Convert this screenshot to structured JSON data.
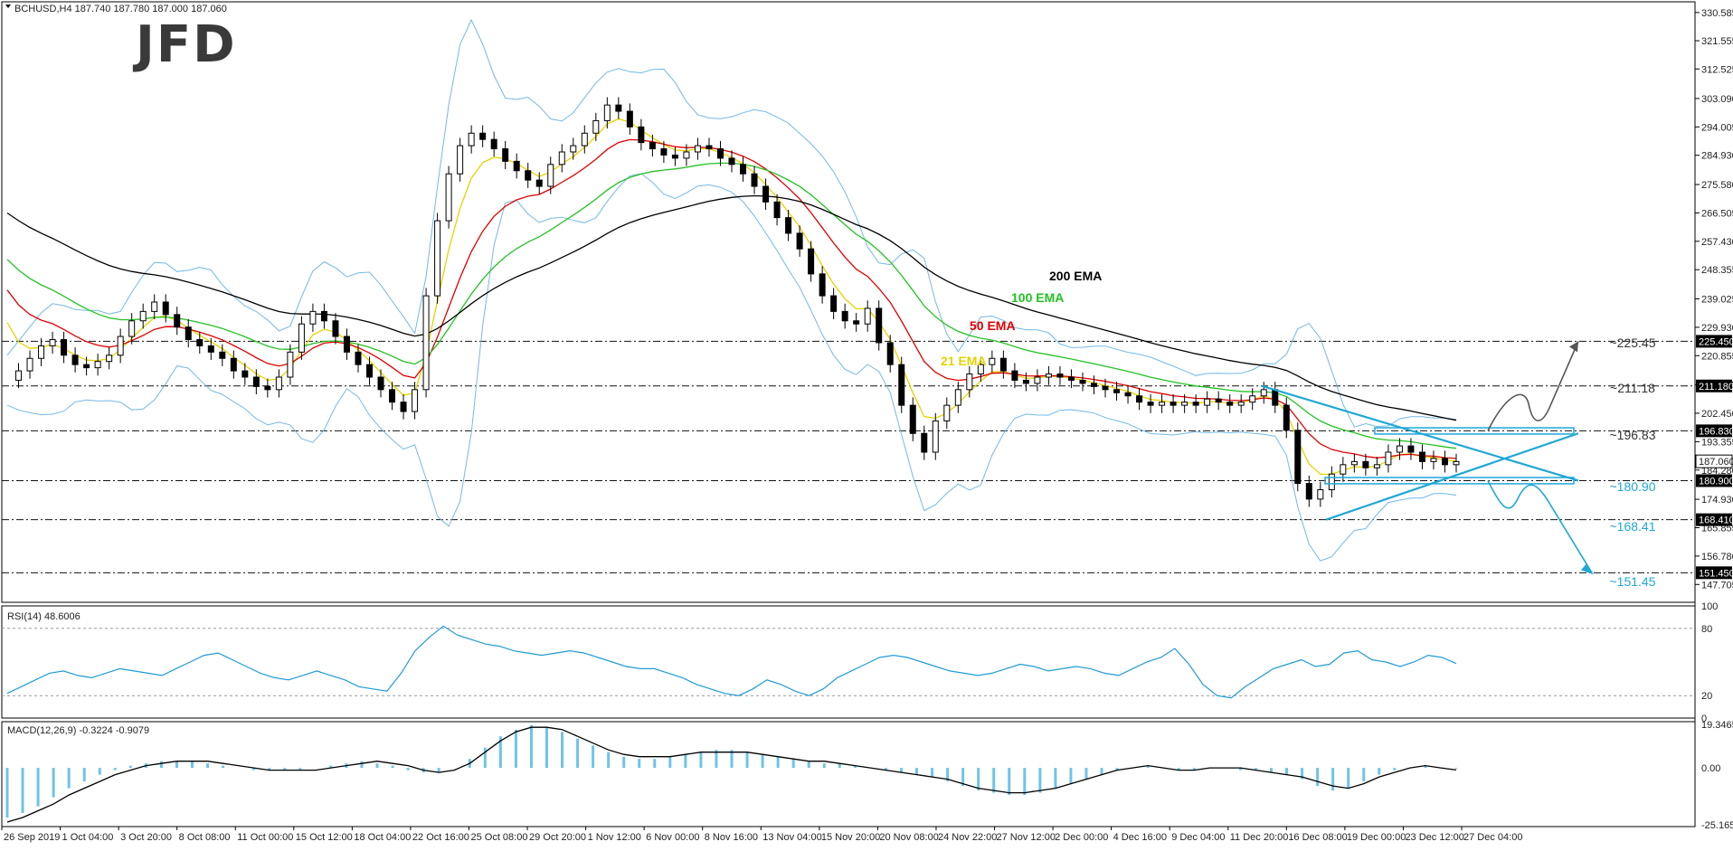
{
  "header": {
    "symbol_line": "BCHUSD,H4  187.740 187.780 187.000 187.060"
  },
  "logo": {
    "text": "JFD"
  },
  "chart_data": [
    {
      "type": "line",
      "pane": "price",
      "symbol": "BCHUSD",
      "timeframe": "H4",
      "ohlc": {
        "open": 187.74,
        "high": 187.78,
        "low": 187.0,
        "close": 187.06
      },
      "ylim": [
        142.0,
        334.0
      ],
      "y_ticks": [
        "330.585",
        "321.555",
        "312.525",
        "303.090",
        "294.005",
        "284.930",
        "275.580",
        "266.505",
        "257.430",
        "248.355",
        "239.025",
        "229.930",
        "220.855",
        "211.525",
        "202.450",
        "193.355",
        "184.280",
        "174.930",
        "165.855",
        "156.780",
        "147.705"
      ],
      "x_labels": [
        "26 Sep 2019",
        "1 Oct 04:00",
        "3 Oct 20:00",
        "8 Oct 08:00",
        "11 Oct 00:00",
        "15 Oct 12:00",
        "18 Oct 04:00",
        "22 Oct 16:00",
        "25 Oct 08:00",
        "29 Oct 20:00",
        "1 Nov 12:00",
        "6 Nov 00:00",
        "8 Nov 16:00",
        "13 Nov 04:00",
        "15 Nov 20:00",
        "20 Nov 08:00",
        "24 Nov 22:00",
        "27 Nov 12:00",
        "2 Dec 00:00",
        "4 Dec 16:00",
        "9 Dec 04:00",
        "11 Dec 20:00",
        "16 Dec 08:00",
        "19 Dec 00:00",
        "23 Dec 12:00",
        "27 Dec 04:00"
      ],
      "close_series": [
        213,
        216,
        220,
        224,
        226,
        221,
        218,
        217,
        219,
        221,
        227,
        232,
        235,
        238,
        234,
        230,
        226,
        224,
        222,
        220,
        216,
        214,
        211,
        210,
        214,
        222,
        231,
        235,
        232,
        227,
        222,
        218,
        214,
        210,
        206,
        203,
        210,
        240,
        264,
        279,
        288,
        292,
        290,
        287,
        283,
        280,
        277,
        275,
        282,
        286,
        288,
        292,
        296,
        301,
        299,
        294,
        289,
        287,
        285,
        284,
        286,
        288,
        287,
        284,
        282,
        279,
        275,
        270,
        265,
        260,
        255,
        247,
        240,
        235,
        232,
        231,
        236,
        225,
        218,
        205,
        196,
        190,
        200,
        205,
        210,
        215,
        218,
        220,
        216,
        213,
        212,
        214,
        215,
        214,
        213,
        212,
        211,
        210,
        209,
        208,
        206,
        205,
        206,
        205,
        206,
        205,
        207,
        206,
        205,
        206,
        208,
        210,
        205,
        197,
        180,
        175,
        178,
        183,
        186,
        187,
        185,
        186,
        190,
        192,
        190,
        187,
        188,
        186,
        187
      ],
      "indicators": [
        {
          "name": "21 EMA",
          "color": "#e5d400"
        },
        {
          "name": "50 EMA",
          "color": "#e00000"
        },
        {
          "name": "100 EMA",
          "color": "#22c222"
        },
        {
          "name": "200 EMA",
          "color": "#000000"
        },
        {
          "name": "Bollinger Bands",
          "color": "#74b9e6"
        }
      ],
      "levels": [
        {
          "value": 225.45,
          "label": "~225.45",
          "axis_box": "225.450"
        },
        {
          "value": 211.18,
          "label": "~211.18",
          "axis_box": "211.180"
        },
        {
          "value": 196.83,
          "label": "~196.83",
          "axis_box": "196.830"
        },
        {
          "value": 180.9,
          "label": "~180.90",
          "axis_box": "180.900"
        },
        {
          "value": 168.41,
          "label": "~168.41",
          "axis_box": "168.410"
        },
        {
          "value": 151.45,
          "label": "~151.45",
          "axis_box": "151.450"
        }
      ],
      "current_price": {
        "value": 187.06,
        "label": "187.060"
      },
      "annotations": {
        "up_target": 225.45,
        "down_target": 151.45
      }
    },
    {
      "type": "line",
      "pane": "rsi",
      "title": "RSI(14) 48.6006",
      "ylim": [
        0,
        100
      ],
      "y_ticks": [
        "100",
        "80",
        "20",
        "0"
      ],
      "levels": [
        80,
        20
      ],
      "color": "#1f9bd7",
      "values": [
        22,
        28,
        34,
        40,
        42,
        38,
        36,
        40,
        44,
        42,
        40,
        38,
        44,
        50,
        56,
        58,
        52,
        46,
        40,
        36,
        34,
        38,
        42,
        38,
        34,
        28,
        26,
        24,
        40,
        60,
        72,
        82,
        74,
        70,
        66,
        64,
        60,
        58,
        56,
        58,
        60,
        58,
        54,
        50,
        46,
        44,
        44,
        40,
        36,
        30,
        26,
        22,
        20,
        26,
        34,
        30,
        24,
        20,
        26,
        36,
        42,
        48,
        54,
        56,
        54,
        50,
        46,
        42,
        40,
        38,
        40,
        44,
        48,
        46,
        42,
        44,
        46,
        44,
        40,
        38,
        44,
        50,
        54,
        62,
        48,
        30,
        20,
        18,
        28,
        36,
        44,
        48,
        52,
        46,
        48,
        58,
        60,
        52,
        50,
        46,
        50,
        56,
        54,
        48.6
      ]
    },
    {
      "type": "bar",
      "pane": "macd",
      "title": "MACD(12,26,9) -0.3224 -0.9079",
      "ylim": [
        -26.0,
        20.5
      ],
      "y_ticks": [
        "19.3465",
        "0.00",
        "-25.1651"
      ],
      "series": [
        {
          "name": "",
          "kind": "histogram",
          "color": "#6ec3e8",
          "values": [
            -22,
            -20,
            -17,
            -13,
            -9,
            -6,
            -3,
            -1,
            1,
            2,
            3,
            3,
            3,
            2,
            1,
            0,
            -1,
            -1,
            -1,
            -1,
            0,
            1,
            2,
            3,
            2,
            1,
            -1,
            -2,
            -2,
            0,
            4,
            9,
            14,
            17,
            19,
            18,
            16,
            13,
            10,
            7,
            5,
            4,
            4,
            5,
            6,
            7,
            8,
            8,
            7,
            6,
            5,
            4,
            3,
            2,
            2,
            1,
            0,
            -1,
            -2,
            -3,
            -4,
            -6,
            -8,
            -10,
            -11,
            -12,
            -12,
            -11,
            -9,
            -7,
            -5,
            -3,
            -1,
            0,
            1,
            0,
            -1,
            -1,
            0,
            0,
            -1,
            -1,
            -2,
            -3,
            -5,
            -8,
            -10,
            -9,
            -6,
            -3,
            -1,
            0,
            1,
            0,
            -0.3
          ]
        },
        {
          "name": "",
          "kind": "signal",
          "color": "#000000",
          "values": [
            -24,
            -22,
            -19,
            -16,
            -12,
            -9,
            -6,
            -3,
            -1,
            1,
            2,
            3,
            3,
            3,
            2,
            1,
            0,
            -1,
            -1,
            -1,
            -1,
            0,
            1,
            2,
            3,
            2,
            1,
            -1,
            -2,
            -1,
            2,
            7,
            12,
            16,
            18,
            18,
            17,
            14,
            11,
            8,
            6,
            5,
            5,
            5,
            6,
            7,
            7,
            7,
            7,
            6,
            5,
            4,
            3,
            3,
            2,
            1,
            0,
            -1,
            -2,
            -3,
            -4,
            -5,
            -7,
            -9,
            -10,
            -11,
            -11,
            -10,
            -9,
            -7,
            -5,
            -3,
            -1,
            0,
            1,
            0,
            -1,
            -1,
            0,
            0,
            0,
            -1,
            -2,
            -3,
            -4,
            -6,
            -8,
            -9,
            -7,
            -4,
            -2,
            0,
            1,
            0,
            -0.9
          ]
        }
      ]
    }
  ]
}
